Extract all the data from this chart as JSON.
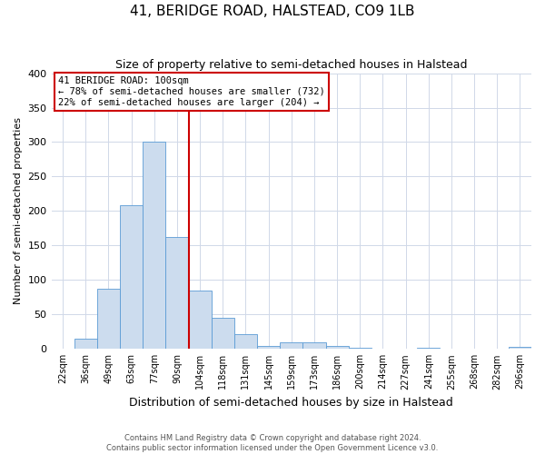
{
  "title": "41, BERIDGE ROAD, HALSTEAD, CO9 1LB",
  "subtitle": "Size of property relative to semi-detached houses in Halstead",
  "xlabel": "Distribution of semi-detached houses by size in Halstead",
  "ylabel": "Number of semi-detached properties",
  "bin_labels": [
    "22sqm",
    "36sqm",
    "49sqm",
    "63sqm",
    "77sqm",
    "90sqm",
    "104sqm",
    "118sqm",
    "131sqm",
    "145sqm",
    "159sqm",
    "173sqm",
    "186sqm",
    "200sqm",
    "214sqm",
    "227sqm",
    "241sqm",
    "255sqm",
    "268sqm",
    "282sqm",
    "296sqm"
  ],
  "bar_values": [
    0,
    15,
    87,
    209,
    300,
    163,
    85,
    45,
    22,
    5,
    9,
    9,
    5,
    2,
    0,
    0,
    2,
    0,
    0,
    0,
    3
  ],
  "bar_color": "#ccdcee",
  "bar_edge_color": "#5b9bd5",
  "property_line_x": 6,
  "annotation_line1": "41 BERIDGE ROAD: 100sqm",
  "annotation_line2": "← 78% of semi-detached houses are smaller (732)",
  "annotation_line3": "22% of semi-detached houses are larger (204) →",
  "annotation_box_color": "#cc0000",
  "vline_color": "#cc0000",
  "ylim": [
    0,
    400
  ],
  "yticks": [
    0,
    50,
    100,
    150,
    200,
    250,
    300,
    350,
    400
  ],
  "footer_line1": "Contains HM Land Registry data © Crown copyright and database right 2024.",
  "footer_line2": "Contains public sector information licensed under the Open Government Licence v3.0.",
  "background_color": "#ffffff",
  "grid_color": "#d0d8e8"
}
